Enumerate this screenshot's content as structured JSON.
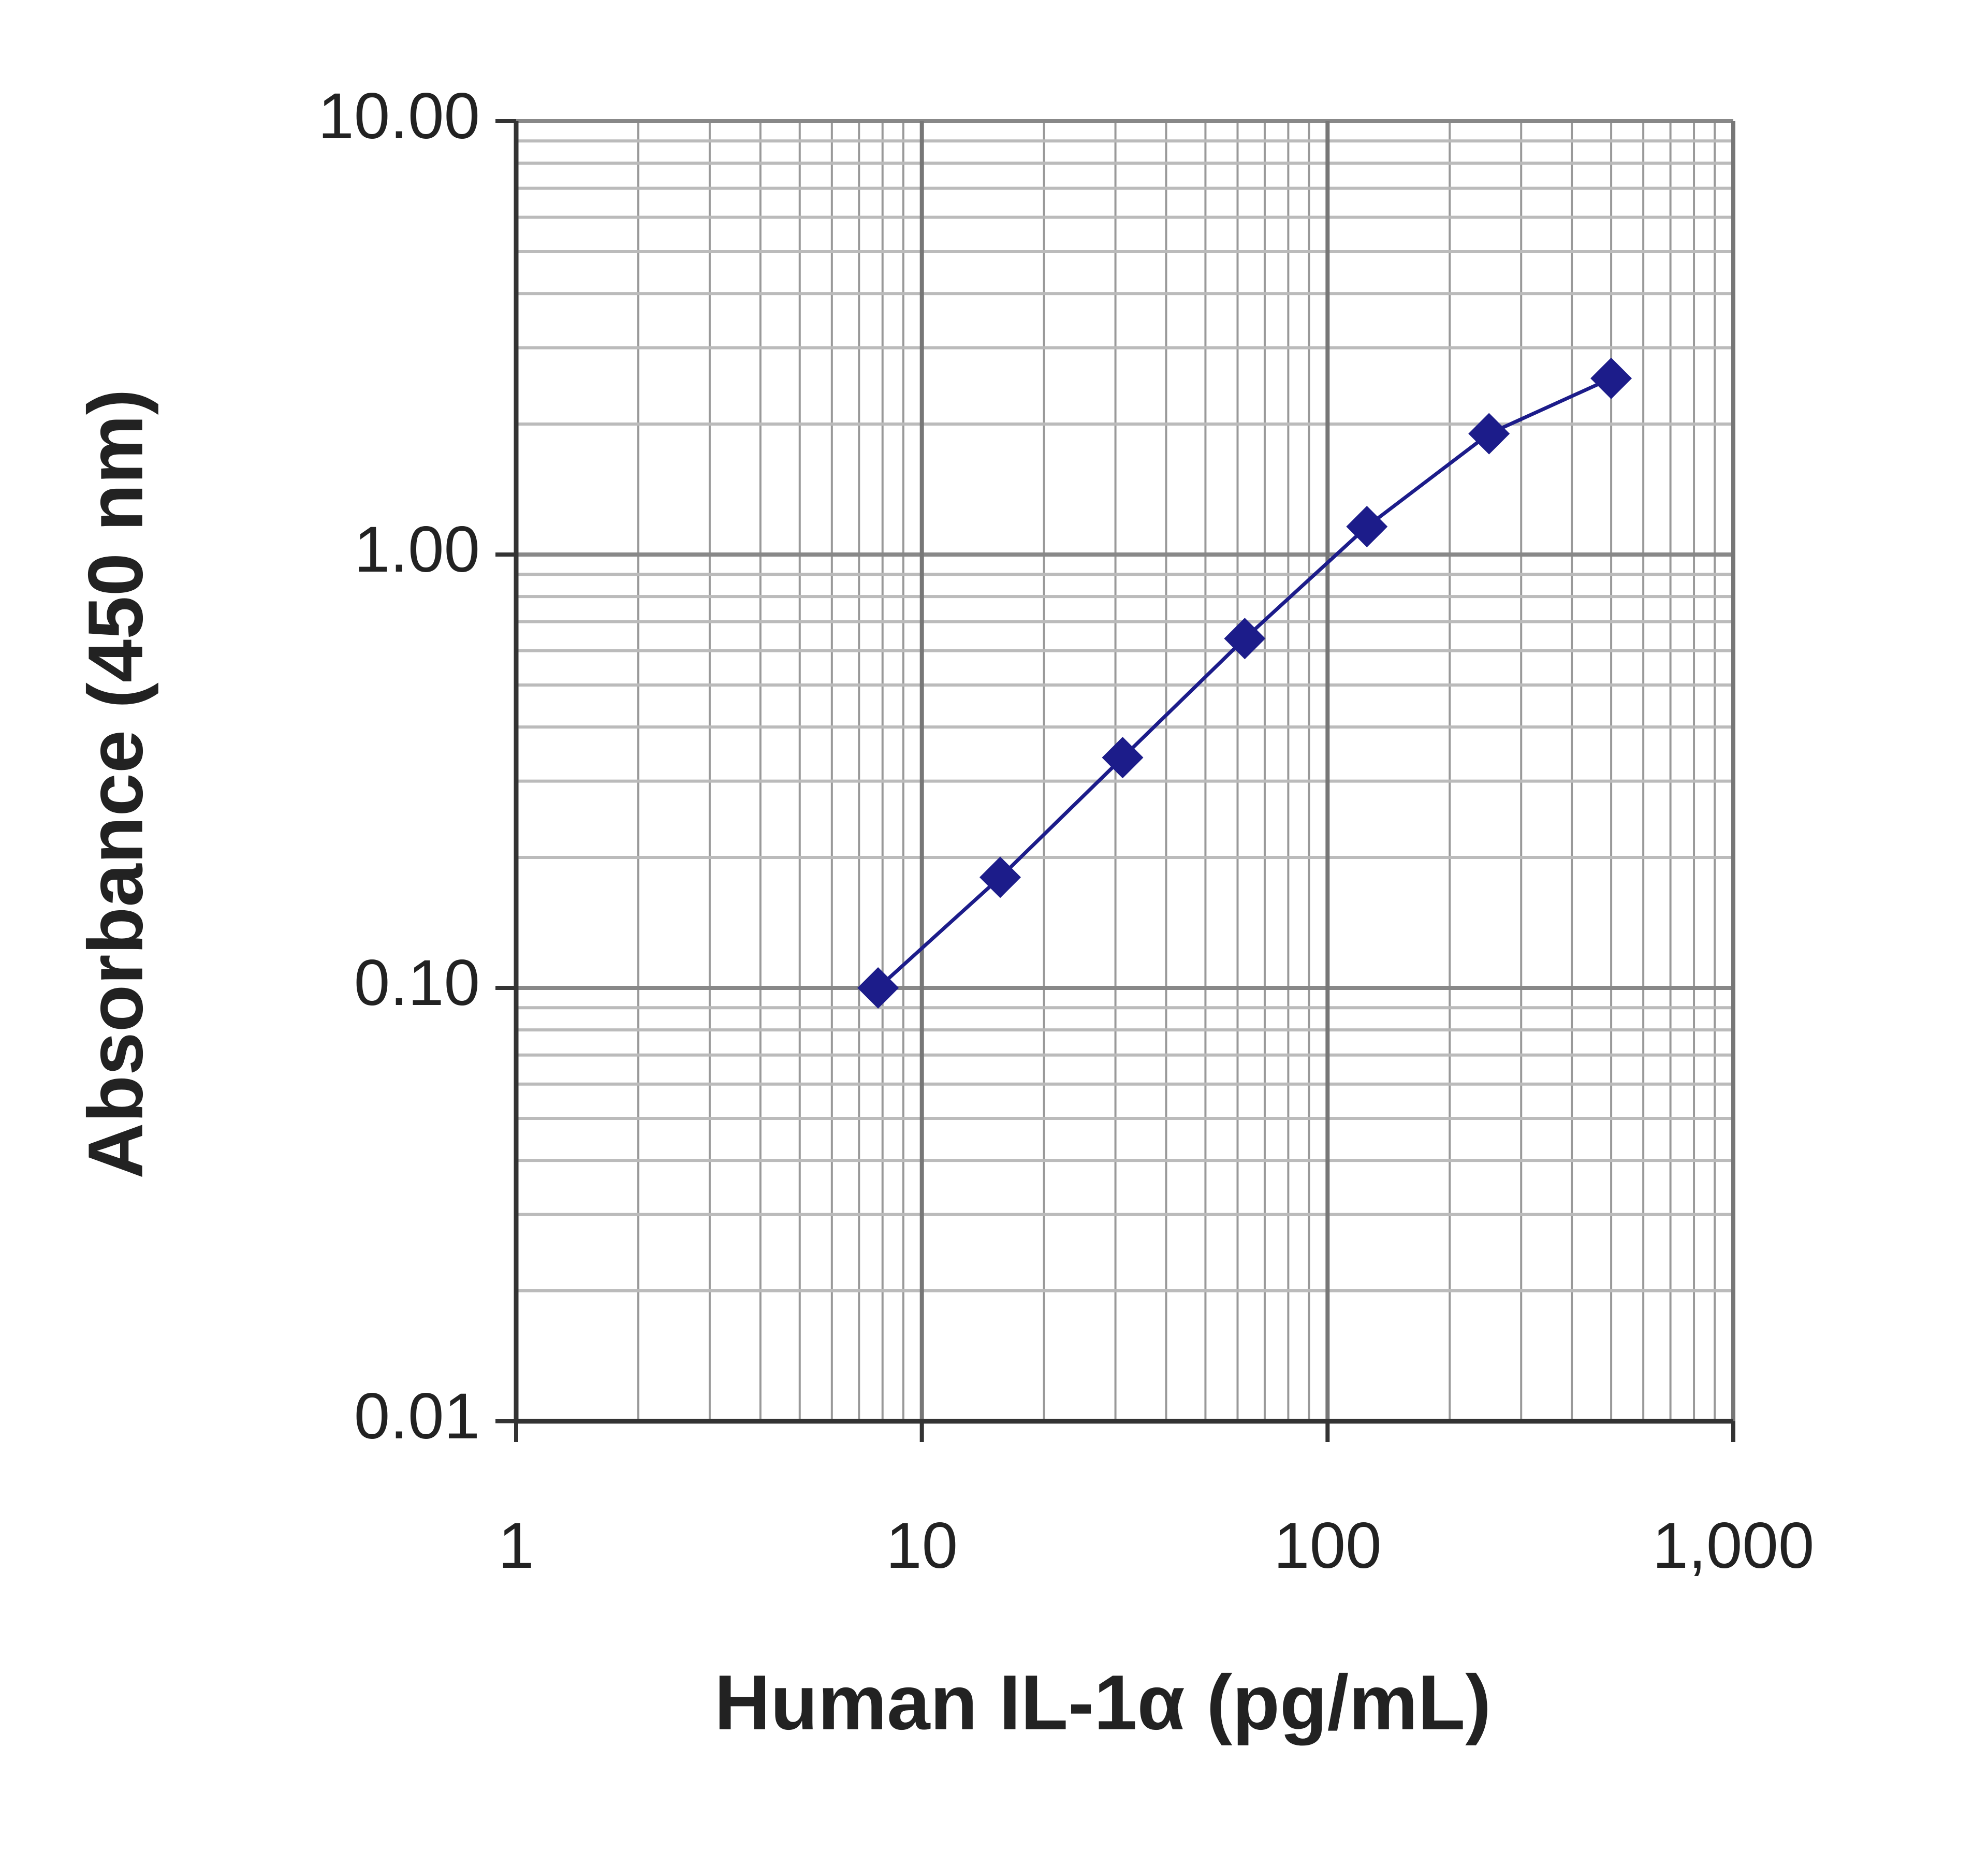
{
  "chart_data": {
    "type": "line",
    "x_label": "Human IL-1α (pg/mL)",
    "y_label": "Absorbance (450 nm)",
    "x": [
      7.8,
      15.6,
      31.25,
      62.5,
      125,
      250,
      500
    ],
    "series": [
      {
        "color": "#1c1c8a",
        "values": [
          0.1,
          0.18,
          0.34,
          0.64,
          1.16,
          1.9,
          2.55
        ]
      }
    ],
    "x_log": true,
    "y_log": true,
    "xlim": [
      1,
      1000
    ],
    "ylim": [
      0.01,
      10
    ],
    "xticks": [
      1,
      10,
      100,
      {
        "value": 1000,
        "label": "1,000"
      }
    ],
    "yticks": [
      {
        "value": 0.01,
        "label": "0.01"
      },
      {
        "value": 0.1,
        "label": "0.10"
      },
      {
        "value": 1,
        "label": "1.00"
      },
      {
        "value": 10,
        "label": "10.00"
      }
    ],
    "grid": true,
    "minor_grid": true,
    "markers": true
  }
}
